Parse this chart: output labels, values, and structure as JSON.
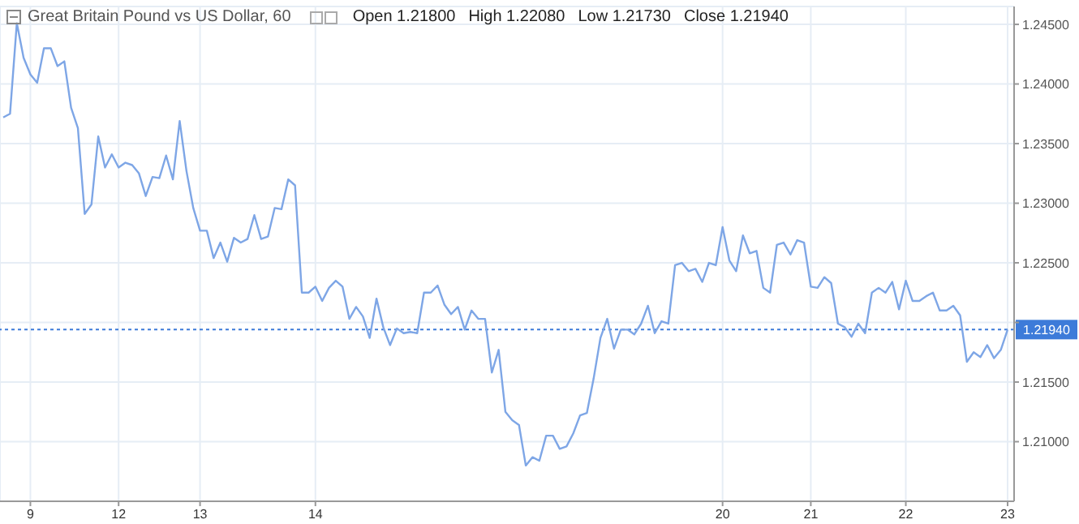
{
  "chart_data": {
    "type": "line",
    "title": "Great Britain Pound vs US Dollar, 60",
    "annotations": [
      "Open 1.21800",
      "High 1.22080",
      "Low 1.21730",
      "Close 1.21940"
    ],
    "categories": [
      null,
      null,
      null,
      null,
      "9",
      null,
      null,
      null,
      null,
      null,
      null,
      null,
      null,
      null,
      null,
      null,
      null,
      "12",
      null,
      null,
      null,
      null,
      null,
      null,
      null,
      null,
      null,
      null,
      null,
      "13",
      null,
      null,
      null,
      null,
      null,
      null,
      null,
      null,
      null,
      null,
      null,
      null,
      null,
      null,
      null,
      null,
      "14",
      null,
      null,
      null,
      null,
      null,
      null,
      null,
      null,
      null,
      null,
      null,
      null,
      null,
      null,
      null,
      null,
      null,
      null,
      null,
      null,
      null,
      null,
      null,
      null,
      null,
      null,
      null,
      null,
      null,
      null,
      null,
      null,
      null,
      null,
      null,
      null,
      null,
      null,
      null,
      null,
      null,
      null,
      null,
      null,
      null,
      null,
      null,
      null,
      null,
      null,
      null,
      null,
      null,
      null,
      null,
      null,
      null,
      null,
      null,
      "20",
      null,
      null,
      null,
      null,
      null,
      null,
      null,
      null,
      null,
      null,
      null,
      null,
      "21",
      null,
      null,
      null,
      null,
      null,
      null,
      null,
      null,
      null,
      null,
      null,
      null,
      null,
      "22",
      null,
      null,
      null,
      null,
      null,
      null,
      null,
      null,
      null,
      null,
      null,
      null,
      null,
      null,
      "23"
    ],
    "series": [
      {
        "color": "#7ea6e6",
        "values": [
          1.2372,
          1.2375,
          1.2451,
          1.2422,
          1.2408,
          1.2401,
          1.243,
          1.243,
          1.2415,
          1.2419,
          1.238,
          1.2363,
          1.2291,
          1.2299,
          1.2356,
          1.233,
          1.2341,
          1.233,
          1.2334,
          1.2332,
          1.2325,
          1.2306,
          1.2322,
          1.2321,
          1.234,
          1.232,
          1.2369,
          1.2327,
          1.2296,
          1.2277,
          1.2277,
          1.2254,
          1.2267,
          1.2251,
          1.2271,
          1.2267,
          1.227,
          1.229,
          1.227,
          1.2272,
          1.2296,
          1.2295,
          1.232,
          1.2315,
          1.2225,
          1.2225,
          1.223,
          1.2218,
          1.2229,
          1.2235,
          1.223,
          1.2203,
          1.2213,
          1.2205,
          1.2187,
          1.222,
          1.2196,
          1.2181,
          1.2195,
          1.2191,
          1.2192,
          1.2191,
          1.2225,
          1.2225,
          1.2231,
          1.2215,
          1.2207,
          1.2213,
          1.2194,
          1.221,
          1.2203,
          1.2203,
          1.2158,
          1.2177,
          1.2125,
          1.2118,
          1.2114,
          1.208,
          1.2087,
          1.2084,
          1.2105,
          1.2105,
          1.2094,
          1.2096,
          1.2107,
          1.2122,
          1.2124,
          1.2153,
          1.2187,
          1.2203,
          1.2178,
          1.2194,
          1.2194,
          1.219,
          1.2199,
          1.2214,
          1.2191,
          1.2201,
          1.2199,
          1.2248,
          1.225,
          1.2243,
          1.2245,
          1.2234,
          1.225,
          1.2248,
          1.228,
          1.2252,
          1.2243,
          1.2273,
          1.2258,
          1.226,
          1.2229,
          1.2225,
          1.2265,
          1.2267,
          1.2257,
          1.2269,
          1.2267,
          1.223,
          1.2229,
          1.2238,
          1.2233,
          1.2199,
          1.2196,
          1.2188,
          1.2199,
          1.2191,
          1.2225,
          1.2229,
          1.2225,
          1.2234,
          1.2211,
          1.2235,
          1.2218,
          1.2218,
          1.2222,
          1.2225,
          1.221,
          1.221,
          1.2214,
          1.2206,
          1.2167,
          1.2175,
          1.2171,
          1.2181,
          1.217,
          1.2177,
          1.2194
        ]
      }
    ],
    "ylim": [
      1.205,
      1.2465
    ],
    "yticks": [
      {
        "value": 1.21,
        "label": "1.21000"
      },
      {
        "value": 1.215,
        "label": "1.21500"
      },
      {
        "value": 1.22,
        "label": null
      },
      {
        "value": 1.225,
        "label": "1.22500"
      },
      {
        "value": 1.23,
        "label": "1.23000"
      },
      {
        "value": 1.235,
        "label": "1.23500"
      },
      {
        "value": 1.24,
        "label": "1.24000"
      },
      {
        "value": 1.245,
        "label": "1.24500"
      }
    ],
    "ref_lines": [
      {
        "axis": "y",
        "value": 1.2194,
        "label": "1.21940",
        "color": "#3d7bd9",
        "line_style": "dotted"
      }
    ],
    "grid": true,
    "marker": "none",
    "line_style": "solid"
  }
}
